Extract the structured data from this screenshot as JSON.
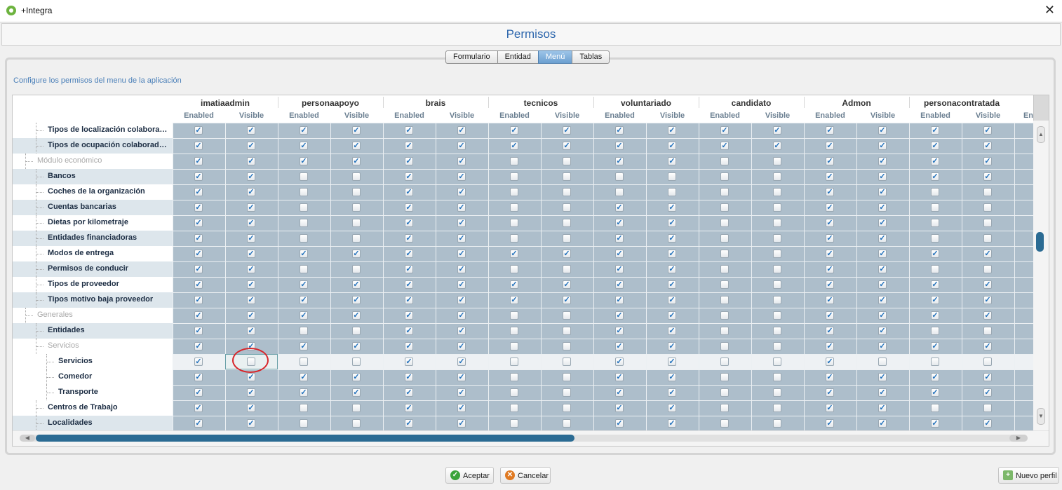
{
  "window": {
    "app_title": "+Integra",
    "close_label": "✕"
  },
  "page": {
    "title": "Permisos",
    "instructions": "Configure los permisos del menu de la aplicación"
  },
  "tabs": [
    {
      "label": "Formulario",
      "active": false
    },
    {
      "label": "Entidad",
      "active": false
    },
    {
      "label": "Menú",
      "active": true
    },
    {
      "label": "Tablas",
      "active": false
    }
  ],
  "subheaders": {
    "enabled": "Enabled",
    "visible": "Visible",
    "partial": "En"
  },
  "users": [
    "imatiaadmin",
    "personaapoyo",
    "brais",
    "tecnicos",
    "voluntariado",
    "candidato",
    "Admon",
    "personacontratada"
  ],
  "rows": [
    {
      "label": "Tipos de localización colaboradores",
      "level": 2,
      "group": false,
      "perms": "1111111111111111"
    },
    {
      "label": "Tipos de ocupación colaboradores",
      "level": 2,
      "group": false,
      "perms": "1111111111111111"
    },
    {
      "label": "Módulo económico",
      "level": 1,
      "group": true,
      "perms": "1111110011001111"
    },
    {
      "label": "Bancos",
      "level": 2,
      "group": false,
      "perms": "1100110000001111"
    },
    {
      "label": "Coches de la organización",
      "level": 2,
      "group": false,
      "perms": "1100110000001100"
    },
    {
      "label": "Cuentas bancarias",
      "level": 2,
      "group": false,
      "perms": "1100110011001100"
    },
    {
      "label": "Dietas por kilometraje",
      "level": 2,
      "group": false,
      "perms": "1100110011001100"
    },
    {
      "label": "Entidades financiadoras",
      "level": 2,
      "group": false,
      "perms": "1100110011001100"
    },
    {
      "label": "Modos de entrega",
      "level": 2,
      "group": false,
      "perms": "1111111111001111"
    },
    {
      "label": "Permisos de conducir",
      "level": 2,
      "group": false,
      "perms": "1100110011001100"
    },
    {
      "label": "Tipos de proveedor",
      "level": 2,
      "group": false,
      "perms": "1111111111001111"
    },
    {
      "label": "Tipos motivo baja proveedor",
      "level": 2,
      "group": false,
      "perms": "1111111111001111"
    },
    {
      "label": "Generales",
      "level": 1,
      "group": true,
      "perms": "1111110011001111"
    },
    {
      "label": "Entidades",
      "level": 2,
      "group": false,
      "perms": "1100110011001100"
    },
    {
      "label": "Servicios",
      "level": 2,
      "group": true,
      "perms": "1111110011001111"
    },
    {
      "label": "Servicios",
      "level": 3,
      "group": false,
      "perms": "1000110011001000"
    },
    {
      "label": "Comedor",
      "level": 3,
      "group": false,
      "perms": "1111110011001111"
    },
    {
      "label": "Transporte",
      "level": 3,
      "group": false,
      "perms": "1111110011001111"
    },
    {
      "label": "Centros de Trabajo",
      "level": 2,
      "group": false,
      "perms": "1100110011001100"
    },
    {
      "label": "Localidades",
      "level": 2,
      "group": false,
      "perms": "1100110011001111"
    }
  ],
  "buttons": {
    "accept": "Aceptar",
    "cancel": "Cancelar",
    "new_profile": "Nuevo perfil"
  }
}
